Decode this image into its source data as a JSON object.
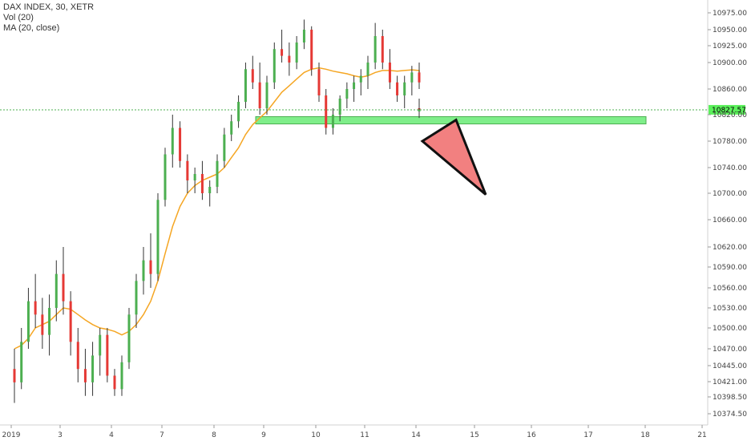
{
  "legend": {
    "line1": "DAX INDEX, 30, XETR",
    "line2": "Vol (20)",
    "line3": "MA (20, close)"
  },
  "chart_data": {
    "type": "candlestick",
    "symbol": "DAX INDEX",
    "interval": "30",
    "exchange": "XETR",
    "y_ticks": [
      10975.0,
      10950.0,
      10925.0,
      10900.0,
      10860.0,
      10820.0,
      10780.0,
      10740.0,
      10700.0,
      10660.0,
      10620.0,
      10590.0,
      10560.0,
      10530.0,
      10500.0,
      10470.0,
      10445.0,
      10421.0,
      10398.5,
      10374.5
    ],
    "x_ticks": [
      "2019",
      "3",
      "4",
      "7",
      "8",
      "9",
      "10",
      "11",
      "14",
      "15",
      "16",
      "17",
      "18",
      "21"
    ],
    "last_price": "10827.57",
    "colors": {
      "up": "#4caf50",
      "down": "#e53935",
      "ma": "#f5a623",
      "price_line": "#4caf50",
      "zone": "#7fee8a",
      "triangle": "#f28080"
    },
    "candles": [
      [
        10440,
        10470,
        10390,
        10420
      ],
      [
        10420,
        10500,
        10410,
        10480
      ],
      [
        10480,
        10560,
        10470,
        10540
      ],
      [
        10540,
        10580,
        10500,
        10520
      ],
      [
        10520,
        10545,
        10470,
        10490
      ],
      [
        10490,
        10550,
        10460,
        10530
      ],
      [
        10530,
        10600,
        10510,
        10580
      ],
      [
        10580,
        10620,
        10520,
        10540
      ],
      [
        10540,
        10555,
        10460,
        10480
      ],
      [
        10480,
        10500,
        10420,
        10440
      ],
      [
        10440,
        10470,
        10400,
        10420
      ],
      [
        10420,
        10480,
        10400,
        10460
      ],
      [
        10460,
        10500,
        10430,
        10490
      ],
      [
        10490,
        10500,
        10420,
        10430
      ],
      [
        10430,
        10440,
        10400,
        10410
      ],
      [
        10410,
        10460,
        10400,
        10450
      ],
      [
        10450,
        10530,
        10440,
        10520
      ],
      [
        10520,
        10580,
        10500,
        10570
      ],
      [
        10570,
        10620,
        10550,
        10600
      ],
      [
        10600,
        10640,
        10560,
        10580
      ],
      [
        10580,
        10700,
        10570,
        10690
      ],
      [
        10690,
        10770,
        10680,
        10760
      ],
      [
        10760,
        10820,
        10740,
        10800
      ],
      [
        10800,
        10810,
        10740,
        10750
      ],
      [
        10750,
        10760,
        10700,
        10720
      ],
      [
        10720,
        10740,
        10700,
        10730
      ],
      [
        10730,
        10750,
        10690,
        10700
      ],
      [
        10700,
        10720,
        10680,
        10710
      ],
      [
        10710,
        10760,
        10700,
        10750
      ],
      [
        10750,
        10800,
        10740,
        10790
      ],
      [
        10790,
        10820,
        10780,
        10810
      ],
      [
        10810,
        10850,
        10800,
        10840
      ],
      [
        10840,
        10900,
        10830,
        10890
      ],
      [
        10890,
        10910,
        10860,
        10870
      ],
      [
        10870,
        10900,
        10820,
        10830
      ],
      [
        10830,
        10880,
        10820,
        10870
      ],
      [
        10870,
        10930,
        10860,
        10920
      ],
      [
        10920,
        10950,
        10900,
        10910
      ],
      [
        10910,
        10930,
        10880,
        10900
      ],
      [
        10900,
        10940,
        10890,
        10930
      ],
      [
        10930,
        10965,
        10920,
        10950
      ],
      [
        10950,
        10955,
        10880,
        10890
      ],
      [
        10890,
        10900,
        10840,
        10850
      ],
      [
        10850,
        10860,
        10790,
        10800
      ],
      [
        10800,
        10830,
        10790,
        10820
      ],
      [
        10820,
        10850,
        10810,
        10845
      ],
      [
        10845,
        10870,
        10830,
        10860
      ],
      [
        10860,
        10880,
        10840,
        10870
      ],
      [
        10870,
        10890,
        10850,
        10880
      ],
      [
        10880,
        10910,
        10860,
        10900
      ],
      [
        10900,
        10960,
        10890,
        10940
      ],
      [
        10940,
        10950,
        10890,
        10900
      ],
      [
        10900,
        10920,
        10860,
        10870
      ],
      [
        10870,
        10880,
        10840,
        10850
      ],
      [
        10850,
        10880,
        10830,
        10870
      ],
      [
        10870,
        10895,
        10850,
        10885
      ],
      [
        10885,
        10900,
        10860,
        10870
      ],
      [
        10830,
        10845,
        10815,
        10825
      ],
      [
        10825,
        10840,
        10818,
        10828
      ]
    ],
    "ma_close": [
      10470,
      10475,
      10485,
      10500,
      10505,
      10510,
      10520,
      10530,
      10528,
      10520,
      10512,
      10505,
      10500,
      10498,
      10495,
      10490,
      10495,
      10505,
      10520,
      10540,
      10570,
      10610,
      10650,
      10680,
      10700,
      10712,
      10720,
      10725,
      10730,
      10740,
      10755,
      10770,
      10790,
      10805,
      10815,
      10825,
      10840,
      10855,
      10865,
      10875,
      10885,
      10890,
      10892,
      10890,
      10887,
      10885,
      10883,
      10880,
      10878,
      10880,
      10885,
      10888,
      10888,
      10887,
      10888,
      10889,
      10888,
      10886,
      10884
    ],
    "support_zone": [
      10806,
      10817
    ],
    "triangle": [
      [
        10812,
        10780
      ],
      [
        10790,
        10698
      ]
    ]
  }
}
